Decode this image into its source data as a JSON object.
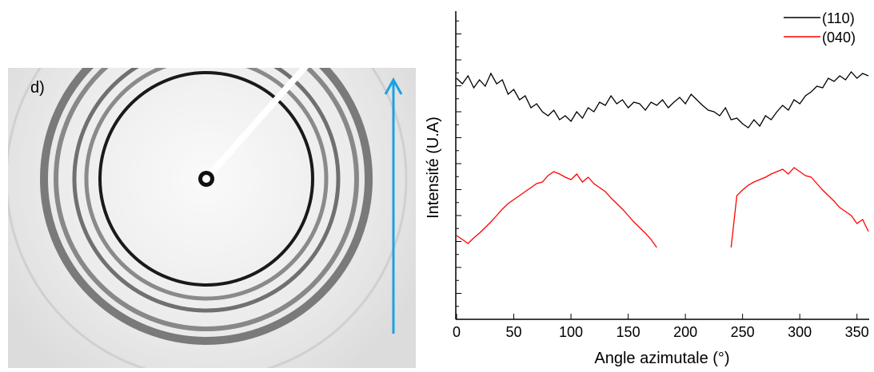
{
  "panel_label": "d)",
  "chart_data": {
    "type": "line",
    "xlabel": "Angle azimutale (°)",
    "ylabel": "Intensité (U.A)",
    "x": [
      0,
      5,
      10,
      15,
      20,
      25,
      30,
      35,
      40,
      45,
      50,
      55,
      60,
      65,
      70,
      75,
      80,
      85,
      90,
      95,
      100,
      105,
      110,
      115,
      120,
      125,
      130,
      135,
      140,
      145,
      150,
      155,
      160,
      165,
      170,
      175,
      180,
      185,
      190,
      195,
      200,
      205,
      210,
      215,
      220,
      225,
      230,
      235,
      240,
      245,
      250,
      255,
      260,
      265,
      270,
      275,
      280,
      285,
      290,
      295,
      300,
      305,
      310,
      315,
      320,
      325,
      330,
      335,
      340,
      345,
      350,
      355,
      360
    ],
    "series": [
      {
        "name": "(110)",
        "color": "#000000",
        "values": [
          302,
          295,
          305,
          290,
          300,
          292,
          308,
          295,
          300,
          282,
          288,
          275,
          280,
          265,
          270,
          260,
          255,
          262,
          250,
          255,
          248,
          260,
          252,
          265,
          260,
          272,
          268,
          280,
          270,
          275,
          265,
          272,
          270,
          262,
          272,
          268,
          275,
          265,
          272,
          278,
          270,
          282,
          275,
          268,
          262,
          260,
          255,
          265,
          250,
          252,
          245,
          240,
          250,
          242,
          255,
          250,
          260,
          268,
          262,
          275,
          270,
          280,
          285,
          292,
          290,
          302,
          298,
          305,
          300,
          310,
          302,
          308,
          305
        ]
      },
      {
        "name": "(040)",
        "color": "#ff0000",
        "values": [
          105,
          100,
          95,
          102,
          108,
          115,
          122,
          130,
          138,
          145,
          150,
          155,
          160,
          165,
          170,
          172,
          180,
          185,
          182,
          178,
          175,
          182,
          172,
          178,
          170,
          165,
          160,
          152,
          145,
          138,
          130,
          122,
          115,
          108,
          100,
          90,
          null,
          null,
          null,
          null,
          null,
          null,
          null,
          null,
          null,
          null,
          null,
          null,
          90,
          155,
          162,
          168,
          172,
          175,
          178,
          182,
          185,
          188,
          182,
          190,
          185,
          180,
          178,
          170,
          162,
          155,
          148,
          140,
          135,
          130,
          120,
          125,
          110
        ]
      }
    ],
    "xlim": [
      0,
      360
    ],
    "xticks": [
      0,
      50,
      100,
      150,
      200,
      250,
      300,
      350
    ],
    "ylim": [
      0,
      390
    ],
    "legend": "upper right"
  }
}
